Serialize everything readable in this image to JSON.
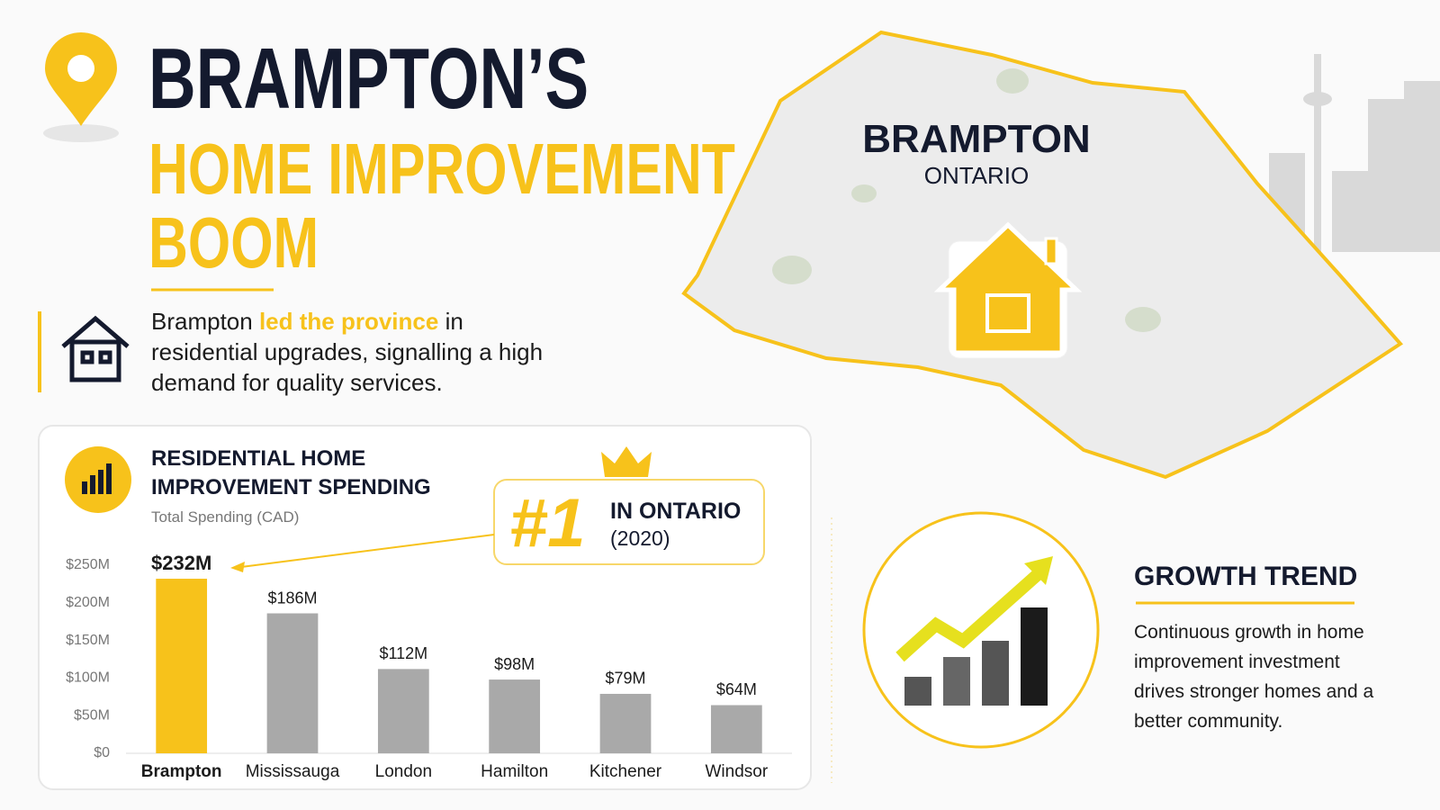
{
  "header": {
    "title_line1": "BRAMPTON’S",
    "title_line2": "HOME IMPROVEMENT",
    "title_line3": "BOOM"
  },
  "intro": {
    "before": "Brampton ",
    "highlight": "led the province",
    "after": " in residential upgrades, signalling a high demand for quality services."
  },
  "chart_data": {
    "type": "bar",
    "title": "RESIDENTIAL HOME IMPROVEMENT SPENDING",
    "subtitle": "Total Spending (CAD)",
    "categories": [
      "Brampton",
      "Mississauga",
      "London",
      "Hamilton",
      "Kitchener",
      "Windsor"
    ],
    "values": [
      232,
      186,
      112,
      98,
      79,
      64
    ],
    "value_labels": [
      "$232M",
      "$186M",
      "$112M",
      "$98M",
      "$79M",
      "$64M"
    ],
    "colors": [
      "#f7c21b",
      "#a9a9a9",
      "#a9a9a9",
      "#a9a9a9",
      "#a9a9a9",
      "#a9a9a9"
    ],
    "ylim": [
      0,
      250
    ],
    "yticks": [
      {
        "value": 0,
        "label": "$0"
      },
      {
        "value": 50,
        "label": "$50M"
      },
      {
        "value": 100,
        "label": "$100M"
      },
      {
        "value": 150,
        "label": "$150M"
      },
      {
        "value": 200,
        "label": "$200M"
      },
      {
        "value": 250,
        "label": "$250M"
      }
    ],
    "grid": false
  },
  "badge": {
    "rank": "#1",
    "line1": "IN ONTARIO",
    "line2": "(2020)"
  },
  "map": {
    "city": "BRAMPTON",
    "province": "ONTARIO"
  },
  "growth": {
    "title": "GROWTH TREND",
    "text": "Continuous growth in home improvement investment drives stronger homes and a better community."
  }
}
